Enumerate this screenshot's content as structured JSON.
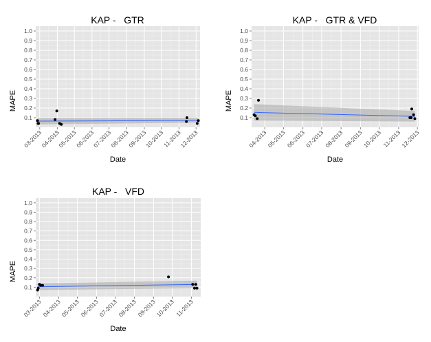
{
  "colors": {
    "panel_background": "#e5e5e5",
    "grid_major": "#ffffff",
    "grid_minor": "#f2f2f2",
    "point": "#000000",
    "fit_line": "#3366ff",
    "confidence_band": "#999999",
    "tick": "#7f7f7f",
    "tick_label": "#4d4d4d"
  },
  "chart_data": [
    {
      "type": "scatter",
      "title": "KAP -   GTR",
      "xlabel": "Date",
      "ylabel": "MAPE",
      "xlim": [
        "2013-02-22",
        "2013-12-08"
      ],
      "ylim": [
        0,
        1.05
      ],
      "x_ticks": [
        "2013-03-01",
        "2013-04-01",
        "2013-05-01",
        "2013-06-01",
        "2013-07-01",
        "2013-08-01",
        "2013-09-01",
        "2013-10-01",
        "2013-11-01",
        "2013-12-01"
      ],
      "x_tick_labels": [
        "03-2013",
        "04-2013",
        "05-2013",
        "06-2013",
        "07-2013",
        "08-2013",
        "09-2013",
        "10-2013",
        "11-2013",
        "12-2013"
      ],
      "y_ticks": [
        0.1,
        0.2,
        0.3,
        0.4,
        0.5,
        0.6,
        0.7,
        0.8,
        0.9,
        1.0
      ],
      "y_tick_labels": [
        "0.1",
        "0.2",
        "0.3",
        "0.4",
        "0.5",
        "0.6",
        "0.7",
        "0.8",
        "0.9",
        "1.0"
      ],
      "grid": true,
      "points": [
        {
          "x": "2013-02-25",
          "y": 0.07
        },
        {
          "x": "2013-02-26",
          "y": 0.04
        },
        {
          "x": "2013-02-27",
          "y": 0.04
        },
        {
          "x": "2013-03-28",
          "y": 0.08
        },
        {
          "x": "2013-03-31",
          "y": 0.17
        },
        {
          "x": "2013-04-05",
          "y": 0.04
        },
        {
          "x": "2013-04-08",
          "y": 0.03
        },
        {
          "x": "2013-11-14",
          "y": 0.06
        },
        {
          "x": "2013-11-15",
          "y": 0.1
        },
        {
          "x": "2013-12-03",
          "y": 0.04
        },
        {
          "x": "2013-12-05",
          "y": 0.07
        }
      ],
      "trend": {
        "x": [
          "2013-02-25",
          "2013-12-05"
        ],
        "y": [
          0.064,
          0.072
        ]
      },
      "band": {
        "x": [
          "2013-02-25",
          "2013-12-05"
        ],
        "lower": [
          0.03,
          0.048
        ],
        "upper": [
          0.098,
          0.1
        ]
      }
    },
    {
      "type": "scatter",
      "title": "KAP -   GTR & VFD",
      "xlabel": "Date",
      "ylabel": "MAPE",
      "xlim": [
        "2013-03-11",
        "2013-12-03"
      ],
      "ylim": [
        0,
        1.05
      ],
      "x_ticks": [
        "2013-04-01",
        "2013-05-01",
        "2013-06-01",
        "2013-07-01",
        "2013-08-01",
        "2013-09-01",
        "2013-10-01",
        "2013-11-01",
        "2013-12-01"
      ],
      "x_tick_labels": [
        "04-2013",
        "05-2013",
        "06-2013",
        "07-2013",
        "08-2013",
        "09-2013",
        "10-2013",
        "11-2013",
        "12-2013"
      ],
      "y_ticks": [
        0.1,
        0.2,
        0.3,
        0.4,
        0.5,
        0.6,
        0.7,
        0.8,
        0.9,
        1.0
      ],
      "y_tick_labels": [
        "0.1",
        "0.2",
        "0.3",
        "0.4",
        "0.5",
        "0.6",
        "0.7",
        "0.8",
        "0.9",
        "1.0"
      ],
      "grid": true,
      "points": [
        {
          "x": "2013-03-15",
          "y": 0.13
        },
        {
          "x": "2013-03-17",
          "y": 0.12
        },
        {
          "x": "2013-03-20",
          "y": 0.09
        },
        {
          "x": "2013-03-22",
          "y": 0.28
        },
        {
          "x": "2013-11-19",
          "y": 0.1
        },
        {
          "x": "2013-11-21",
          "y": 0.1
        },
        {
          "x": "2013-11-22",
          "y": 0.19
        },
        {
          "x": "2013-11-25",
          "y": 0.13
        },
        {
          "x": "2013-11-27",
          "y": 0.09
        }
      ],
      "trend": {
        "x": [
          "2013-03-15",
          "2013-11-27"
        ],
        "y": [
          0.155,
          0.113
        ]
      },
      "band": {
        "x": [
          "2013-03-15",
          "2013-11-27"
        ],
        "lower": [
          0.07,
          0.06
        ],
        "upper": [
          0.24,
          0.17
        ]
      }
    },
    {
      "type": "scatter",
      "title": "KAP -   VFD",
      "xlabel": "Date",
      "ylabel": "MAPE",
      "xlim": [
        "2013-02-23",
        "2013-11-16"
      ],
      "ylim": [
        0,
        1.05
      ],
      "x_ticks": [
        "2013-03-01",
        "2013-04-01",
        "2013-05-01",
        "2013-06-01",
        "2013-07-01",
        "2013-08-01",
        "2013-09-01",
        "2013-10-01",
        "2013-11-01"
      ],
      "x_tick_labels": [
        "03-2013",
        "04-2013",
        "05-2013",
        "06-2013",
        "07-2013",
        "08-2013",
        "09-2013",
        "10-2013",
        "11-2013"
      ],
      "y_ticks": [
        0.1,
        0.2,
        0.3,
        0.4,
        0.5,
        0.6,
        0.7,
        0.8,
        0.9,
        1.0
      ],
      "y_tick_labels": [
        "0.1",
        "0.2",
        "0.3",
        "0.4",
        "0.5",
        "0.6",
        "0.7",
        "0.8",
        "0.9",
        "1.0"
      ],
      "grid": true,
      "points": [
        {
          "x": "2013-02-26",
          "y": 0.07
        },
        {
          "x": "2013-02-27",
          "y": 0.09
        },
        {
          "x": "2013-03-01",
          "y": 0.13
        },
        {
          "x": "2013-03-03",
          "y": 0.12
        },
        {
          "x": "2013-03-06",
          "y": 0.12
        },
        {
          "x": "2013-09-25",
          "y": 0.21
        },
        {
          "x": "2013-11-03",
          "y": 0.13
        },
        {
          "x": "2013-11-06",
          "y": 0.09
        },
        {
          "x": "2013-11-08",
          "y": 0.13
        },
        {
          "x": "2013-11-10",
          "y": 0.09
        }
      ],
      "trend": {
        "x": [
          "2013-02-26",
          "2013-11-10"
        ],
        "y": [
          0.105,
          0.13
        ]
      },
      "band": {
        "x": [
          "2013-02-26",
          "2013-11-10"
        ],
        "lower": [
          0.07,
          0.09
        ],
        "upper": [
          0.14,
          0.17
        ]
      }
    }
  ]
}
